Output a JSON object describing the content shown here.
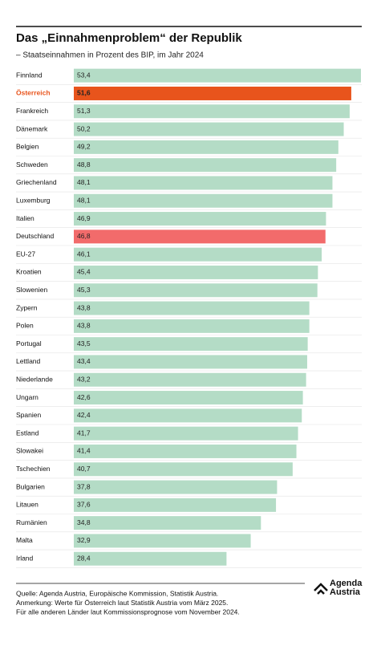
{
  "chart_data": {
    "type": "barh",
    "title": "Das „Einnahmenproblem“ der Republik",
    "subtitle": "– Staatseinnahmen in Prozent des BIP, im Jahr 2024",
    "categories": [
      "Finnland",
      "Österreich",
      "Frankreich",
      "Dänemark",
      "Belgien",
      "Schweden",
      "Griechenland",
      "Luxemburg",
      "Italien",
      "Deutschland",
      "EU-27",
      "Kroatien",
      "Slowenien",
      "Zypern",
      "Polen",
      "Portugal",
      "Lettland",
      "Niederlande",
      "Ungarn",
      "Spanien",
      "Estland",
      "Slowakei",
      "Tschechien",
      "Bulgarien",
      "Litauen",
      "Rumänien",
      "Malta",
      "Irland"
    ],
    "values": [
      53.4,
      51.6,
      51.3,
      50.2,
      49.2,
      48.8,
      48.1,
      48.1,
      46.9,
      46.8,
      46.1,
      45.4,
      45.3,
      43.8,
      43.8,
      43.5,
      43.4,
      43.2,
      42.6,
      42.4,
      41.7,
      41.4,
      40.7,
      37.8,
      37.6,
      34.8,
      32.9,
      28.4
    ],
    "value_labels": [
      "53,4",
      "51,6",
      "51,3",
      "50,2",
      "49,2",
      "48,8",
      "48,1",
      "48,1",
      "46,9",
      "46,8",
      "46,1",
      "45,4",
      "45,3",
      "43,8",
      "43,8",
      "43,5",
      "43,4",
      "43,2",
      "42,6",
      "42,4",
      "41,7",
      "41,4",
      "40,7",
      "37,8",
      "37,6",
      "34,8",
      "32,9",
      "28,4"
    ],
    "colors": [
      "#b4dcc6",
      "#e8541c",
      "#b4dcc6",
      "#b4dcc6",
      "#b4dcc6",
      "#b4dcc6",
      "#b4dcc6",
      "#b4dcc6",
      "#b4dcc6",
      "#f26b6b",
      "#b4dcc6",
      "#b4dcc6",
      "#b4dcc6",
      "#b4dcc6",
      "#b4dcc6",
      "#b4dcc6",
      "#b4dcc6",
      "#b4dcc6",
      "#b4dcc6",
      "#b4dcc6",
      "#b4dcc6",
      "#b4dcc6",
      "#b4dcc6",
      "#b4dcc6",
      "#b4dcc6",
      "#b4dcc6",
      "#b4dcc6",
      "#b4dcc6"
    ],
    "label_colors": [
      "#111",
      "#e8541c",
      "#111",
      "#111",
      "#111",
      "#111",
      "#111",
      "#111",
      "#111",
      "#111",
      "#111",
      "#111",
      "#111",
      "#111",
      "#111",
      "#111",
      "#111",
      "#111",
      "#111",
      "#111",
      "#111",
      "#111",
      "#111",
      "#111",
      "#111",
      "#111",
      "#111",
      "#111"
    ],
    "notes": [
      "Quelle: Agenda Austria, Europäische Kommission, Statistik Austria.",
      "Anmerkung: Werte für Österreich laut Statistik Austria vom März 2025.",
      "Für alle anderen Länder laut Kommissionsprognose vom November 2024."
    ],
    "logo": [
      "Agenda",
      "Austria"
    ]
  }
}
